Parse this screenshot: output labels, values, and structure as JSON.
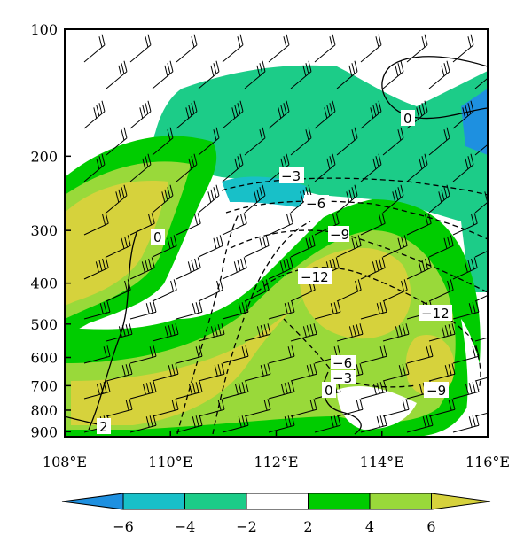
{
  "chart_data": {
    "type": "contour",
    "title": "",
    "xlabel": "",
    "ylabel": "",
    "x_ticks": [
      "108°E",
      "110°E",
      "112°E",
      "114°E",
      "116°E"
    ],
    "y_ticks": [
      "100",
      "200",
      "300",
      "400",
      "500",
      "600",
      "700",
      "800",
      "900"
    ],
    "xlim": [
      108,
      116
    ],
    "ylim_pressure_hPa": [
      100,
      925
    ],
    "y_scale": "log",
    "grid": false,
    "shaded_field": {
      "colorbar_ticks": [
        "−6",
        "−4",
        "−2",
        "2",
        "4",
        "6"
      ],
      "levels": [
        -6,
        -4,
        -2,
        2,
        4,
        6
      ],
      "colors": {
        "lt_-6": "#1e90e0",
        "-6_-4": "#18c0c8",
        "-4_-2": "#1ccc88",
        "-2_2": "#ffffff",
        "2_4": "#00cc00",
        "4_6": "#99d93a",
        "gt_6": "#d6d23c"
      }
    },
    "contour_labels": [
      "0",
      "−3",
      "−6",
      "−9",
      "−12",
      "−12",
      "−6",
      "−3",
      "−9",
      "0",
      "2",
      "0"
    ],
    "contour_style": {
      "negative": "dashed",
      "non_negative": "solid"
    },
    "wind_barbs": true
  }
}
